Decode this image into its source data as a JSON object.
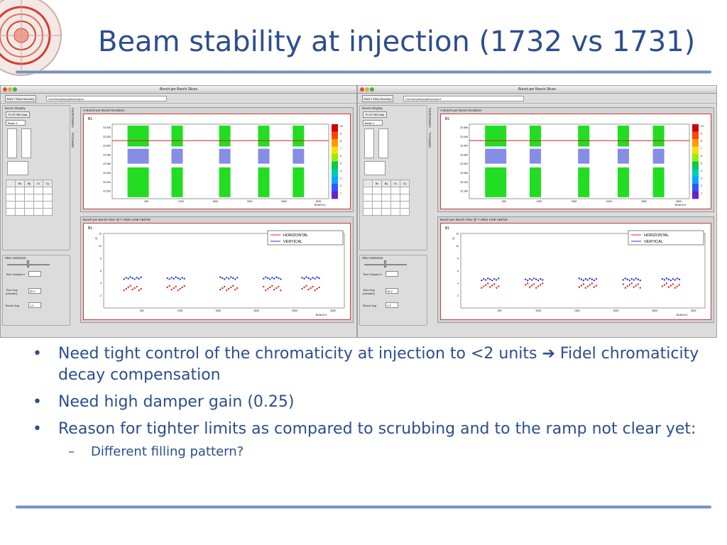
{
  "slide": {
    "title": "Beam stability at injection (1732 vs 1731)",
    "bullets": [
      {
        "text": "Need tight control of the chromaticity at injection to <2 units ➔ Fidel chromaticity decay compensation"
      },
      {
        "text": "Need high damper gain (0.25)"
      },
      {
        "text": "Reason for tighter limits as compared to scrubbing and to the ramp not clear yet:",
        "sub": [
          "Different filling pattern?"
        ]
      }
    ],
    "bullet_glyph": "•",
    "sub_glyph": "–"
  },
  "screens": [
    {
      "window_title": "Bunch per Bunch Slices",
      "toolbar_button": "RUN T-Files Directory",
      "path": "/user/bbq/bbqlog/bbq/output",
      "bunch_display_label": "Bunch Display",
      "plot_button": "PLOT BB Data",
      "beam_select": "Beam 1",
      "table": {
        "headers": [
          "",
          "Bx",
          "By",
          "Cx",
          "Cy"
        ],
        "rows": [
          [
            "",
            "",
            "",
            "",
            ""
          ],
          [
            "",
            "",
            "",
            "",
            ""
          ],
          [
            "",
            "",
            "",
            "",
            ""
          ],
          [
            "",
            "",
            "",
            "",
            ""
          ]
        ]
      },
      "slice_label": "Slice Selection",
      "time_sample_label": "Time Sample #",
      "time_avg_label": "Time Avg (minutes)",
      "time_avg_value": "20.1",
      "bunch_avg_label": "Bunch Avg",
      "bunch_avg_value": "1.0",
      "tabs": [
        "HORIZONTAL",
        "VERTICAL"
      ],
      "top_panel_title": "V Bunch per Bunch Evolution",
      "top_plot_label": "B1",
      "bottom_panel_title": "Bunch per Bunch Slice @ T=RED LINE ABOVE",
      "bottom_plot_label": "B1",
      "legend": [
        "HORIZONTAL",
        "VERTICAL"
      ],
      "x_axis_label": "BUNCH #",
      "x_ticks": [
        "500",
        "1000",
        "1500",
        "2000",
        "2500",
        "3000"
      ],
      "top_y_ticks": [
        "22:34h",
        "22:32h",
        "22:30h",
        "22:28h",
        "22:26h",
        "22:24h",
        "22:22h",
        "22:20h"
      ],
      "colorbar_ticks": [
        "10",
        "9",
        "8",
        "7",
        "6",
        "5",
        "4",
        "3",
        "2",
        "1"
      ],
      "bottom_y_ticks": [
        "12",
        "10",
        "8",
        "6",
        "4",
        "2"
      ],
      "y_axis_label": "Q",
      "bottom_data": {
        "groups_x": [
          0.12,
          0.3,
          0.52,
          0.7,
          0.86
        ],
        "h_level": 3.2,
        "v_level": 4.8
      }
    },
    {
      "window_title": "Bunch per Bunch Slices",
      "toolbar_button": "RUN T-Files Directory",
      "path": "/user/bbq/bbqlog/bbq/output",
      "bunch_display_label": "Bunch Display",
      "plot_button": "PLOT BB Data",
      "beam_select": "Beam 1",
      "table": {
        "headers": [
          "",
          "Bx",
          "By",
          "Cx",
          "Cy"
        ],
        "rows": [
          [
            "",
            "",
            "",
            "",
            ""
          ],
          [
            "",
            "",
            "",
            "",
            ""
          ],
          [
            "",
            "",
            "",
            "",
            ""
          ],
          [
            "",
            "",
            "",
            "",
            ""
          ]
        ]
      },
      "slice_label": "Slice Selection",
      "time_sample_label": "Time Sample #",
      "time_avg_label": "Time Avg (minutes)",
      "time_avg_value": "20.2",
      "bunch_avg_label": "Bunch Avg",
      "bunch_avg_value": "1.0",
      "tabs": [
        "HORIZONTAL",
        "VERTICAL"
      ],
      "top_panel_title": "V Bunch per Bunch Evolution",
      "top_plot_label": "B1",
      "bottom_panel_title": "Bunch per Bunch Slice @ T=RED LINE ABOVE",
      "bottom_plot_label": "B1",
      "legend": [
        "HORIZONTAL",
        "VERTICAL"
      ],
      "x_axis_label": "BUNCH #",
      "x_ticks": [
        "500",
        "1000",
        "1500",
        "2000",
        "2500",
        "3000"
      ],
      "top_y_ticks": [
        "22:48h",
        "22:44h",
        "22:40h",
        "22:36h",
        "22:32h",
        "22:28h",
        "23:12h",
        "23:16h"
      ],
      "colorbar_ticks": [
        "10",
        "9",
        "8",
        "7",
        "6",
        "5",
        "4",
        "3",
        "2",
        "1"
      ],
      "bottom_y_ticks": [
        "12",
        "10",
        "8",
        "6",
        "4",
        "2"
      ],
      "y_axis_label": "Q",
      "bottom_data": {
        "groups_x": [
          0.12,
          0.3,
          0.52,
          0.7,
          0.86
        ],
        "h_level": 3.6,
        "v_level": 4.6
      }
    }
  ],
  "colors": {
    "title": "#2c4d8e",
    "red_line": "#d02020",
    "green": "#22dd22",
    "blue": "#2030d0"
  }
}
